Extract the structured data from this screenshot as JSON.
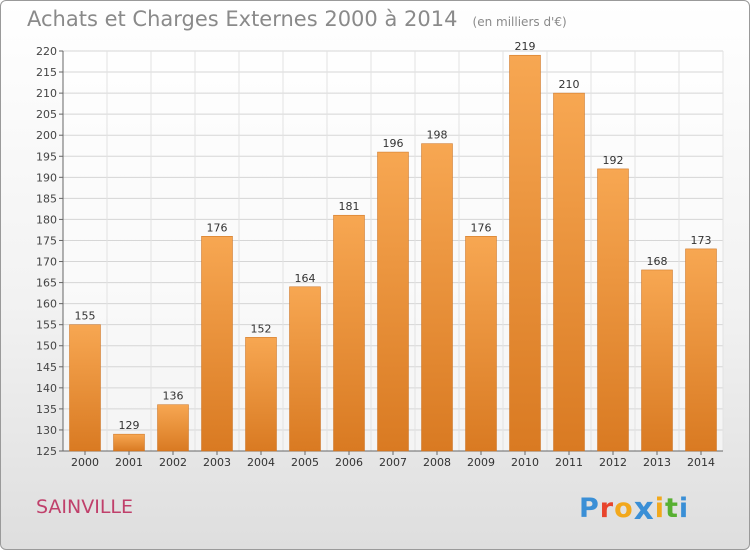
{
  "chart_data": {
    "type": "bar",
    "title": "Achats et Charges Externes 2000 à 2014",
    "subtitle": "(en milliers d'€)",
    "categories": [
      "2000",
      "2001",
      "2002",
      "2003",
      "2004",
      "2005",
      "2006",
      "2007",
      "2008",
      "2009",
      "2010",
      "2011",
      "2012",
      "2013",
      "2014"
    ],
    "values": [
      155,
      129,
      136,
      176,
      152,
      164,
      181,
      196,
      198,
      176,
      219,
      210,
      192,
      168,
      173
    ],
    "ylim": [
      125,
      220
    ],
    "yticks": [
      "125",
      "130",
      "135",
      "140",
      "145",
      "150",
      "155",
      "160",
      "165",
      "170",
      "175",
      "180",
      "185",
      "190",
      "195",
      "200",
      "205",
      "210",
      "215",
      "220"
    ],
    "grid": true,
    "bar_color": "#f0963c",
    "xlabel": "",
    "ylabel": ""
  },
  "commune": "SAINVILLE",
  "brand": {
    "letters": [
      "P",
      "r",
      "o",
      "x",
      "i",
      "t",
      "i"
    ],
    "colors": [
      "#3a8fd6",
      "#e8442c",
      "#f2a81c",
      "#3a8fd6",
      "#f2a81c",
      "#58b032",
      "#3a8fd6"
    ]
  }
}
